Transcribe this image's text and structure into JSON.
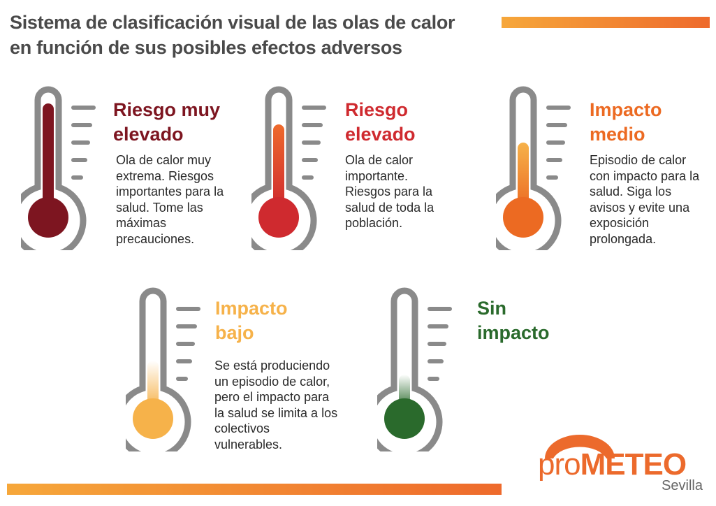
{
  "title": "Sistema de clasificación visual de las olas de calor\nen función de sus posibles efectos adversos",
  "categories": [
    {
      "heading": "Riesgo muy\nelevado",
      "description": "Ola de calor muy extrema. Riesgos importantes para la salud. Tome las máximas precauciones.",
      "color": "#7d1520",
      "level": 0.95
    },
    {
      "heading": "Riesgo\nelevado",
      "description": "Ola de calor importante. Riesgos para la salud de toda la población.",
      "color": "#cf2a2f",
      "level": 0.7
    },
    {
      "heading": "Impacto\nmedio",
      "description": "Episodio de calor con impacto para la salud. Siga los avisos y evite una exposición prolongada.",
      "color": "#ec6a22",
      "level": 0.45
    },
    {
      "heading": "Impacto\nbajo",
      "description": "Se está produciendo un episodio de calor, pero el impacto para la salud se limita a los colectivos vulnerables.",
      "color": "#f6b24a",
      "level": 0.25
    },
    {
      "heading": "Sin\nimpacto",
      "description": "",
      "color": "#2a6a2c",
      "level": 0.15
    }
  ],
  "logo": {
    "word_pro": "pro",
    "word_main": "METEO",
    "subtitle": "Sevilla"
  }
}
